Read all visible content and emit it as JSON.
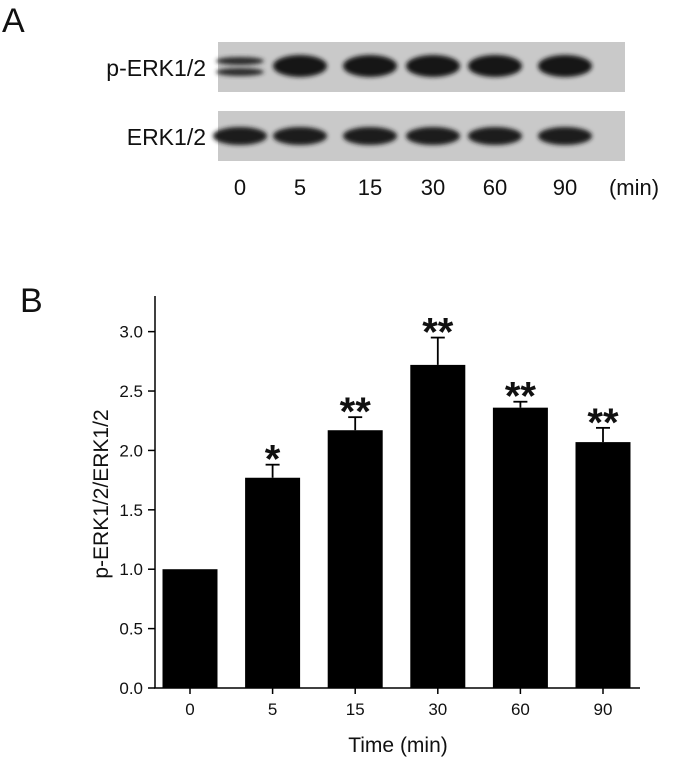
{
  "panel_a": {
    "label": "A",
    "rows": [
      "p-ERK1/2",
      "ERK1/2"
    ],
    "lanes": [
      "0",
      "5",
      "15",
      "30",
      "60",
      "90"
    ],
    "unit": "(min)"
  },
  "chart_data": {
    "type": "bar",
    "panel_label": "B",
    "xlabel": "Time (min)",
    "ylabel": "p-ERK1/2/ERK1/2",
    "categories": [
      "0",
      "5",
      "15",
      "30",
      "60",
      "90"
    ],
    "values": [
      1.0,
      1.77,
      2.17,
      2.72,
      2.36,
      2.07
    ],
    "errors": [
      null,
      0.11,
      0.11,
      0.23,
      0.05,
      0.12
    ],
    "annotations": [
      null,
      "*",
      "**",
      "**",
      "**",
      "**"
    ],
    "color": "#000000",
    "ylim": [
      0,
      3.3
    ],
    "yticks": [
      {
        "value": 0,
        "label": "0.0"
      },
      0.5,
      {
        "value": 1,
        "label": "1.0"
      },
      1.5,
      {
        "value": 2,
        "label": "2.0"
      },
      2.5,
      {
        "value": 3,
        "label": "3.0"
      }
    ]
  }
}
